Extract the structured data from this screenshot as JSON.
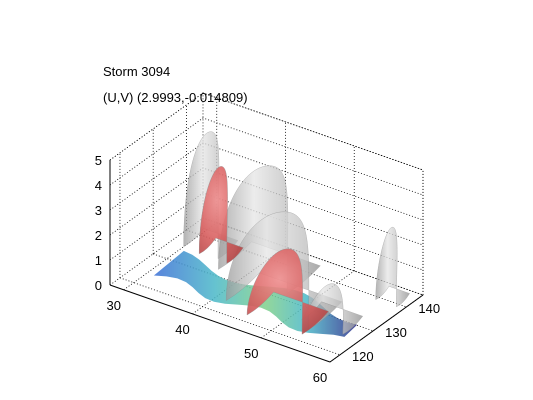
{
  "chart_data": {
    "type": "surface3d",
    "title_lines": [
      "Storm 3094",
      "(U,V) (2.9993,-0.014809)"
    ],
    "x": {
      "ticks": [
        30,
        40,
        50,
        60
      ],
      "range": [
        28,
        60
      ]
    },
    "y": {
      "ticks": [
        120,
        130,
        140
      ],
      "range": [
        117,
        145
      ]
    },
    "z": {
      "ticks": [
        0,
        1,
        2,
        3,
        4,
        5
      ],
      "range": [
        0,
        5
      ]
    },
    "grid": true,
    "box": true,
    "surfaces": [
      {
        "name": "",
        "color": "#c8c8c8",
        "opacity": 0.75,
        "peaks": [
          {
            "x": 33,
            "y": 137,
            "z": 4.7
          },
          {
            "x": 42,
            "y": 136,
            "z": 4.3
          },
          {
            "x": 48,
            "y": 128,
            "z": 3.8
          },
          {
            "x": 58,
            "y": 140,
            "z": 3.0
          },
          {
            "x": 55,
            "y": 128,
            "z": 1.6
          }
        ]
      },
      {
        "name": "",
        "color": "#e07070",
        "opacity": 0.9,
        "peaks": [
          {
            "x": 35,
            "y": 136,
            "z": 3.6
          },
          {
            "x": 50,
            "y": 125,
            "z": 2.8
          }
        ]
      }
    ],
    "base_colormap": [
      "#2a2a8a",
      "#3b6fd6",
      "#4ab8c8",
      "#7fd08a",
      "#d8e070"
    ]
  }
}
